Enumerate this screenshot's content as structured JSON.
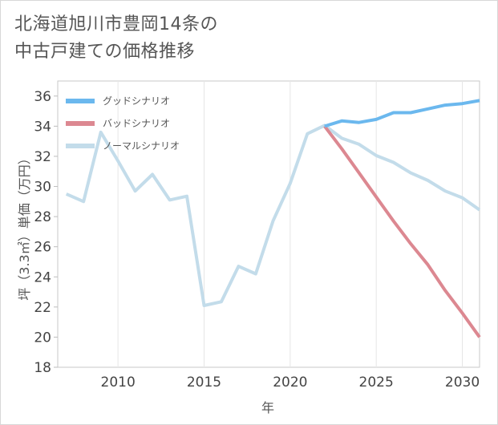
{
  "title": {
    "line1": "北海道旭川市豊岡14条の",
    "line2": "中古戸建ての価格推移"
  },
  "chart_data": {
    "type": "line",
    "title": "北海道旭川市豊岡14条の中古戸建ての価格推移",
    "xlabel": "年",
    "ylabel": "坪（3.3㎡）単価（万円）",
    "xlim": [
      2006.5,
      2031
    ],
    "ylim": [
      18,
      37
    ],
    "xticks": [
      2010,
      2015,
      2020,
      2025,
      2030
    ],
    "yticks": [
      18,
      20,
      22,
      24,
      26,
      28,
      30,
      32,
      34,
      36
    ],
    "grid": "vertical",
    "legend_position": "top-left",
    "series": [
      {
        "name": "グッドシナリオ",
        "color": "#6bb8ee",
        "x": [
          2022,
          2023,
          2024,
          2025,
          2026,
          2027,
          2028,
          2029,
          2030,
          2031
        ],
        "values": [
          34.0,
          34.35,
          34.25,
          34.45,
          34.9,
          34.9,
          35.15,
          35.4,
          35.5,
          35.7
        ]
      },
      {
        "name": "バッドシナリオ",
        "color": "#dc8891",
        "x": [
          2022,
          2023,
          2024,
          2025,
          2026,
          2027,
          2028,
          2029,
          2030,
          2031
        ],
        "values": [
          34.0,
          32.5,
          30.9,
          29.3,
          27.7,
          26.2,
          24.8,
          23.1,
          21.6,
          20.0
        ]
      },
      {
        "name": "ノーマルシナリオ",
        "color": "#c3dcea",
        "x": [
          2007,
          2008,
          2009,
          2010,
          2011,
          2012,
          2013,
          2014,
          2015,
          2016,
          2017,
          2018,
          2019,
          2020,
          2021,
          2022,
          2023,
          2024,
          2025,
          2026,
          2027,
          2028,
          2029,
          2030,
          2031
        ],
        "values": [
          29.5,
          29.0,
          33.6,
          31.7,
          29.7,
          30.8,
          29.1,
          29.35,
          22.1,
          22.35,
          24.7,
          24.2,
          27.7,
          30.2,
          33.5,
          34.05,
          33.2,
          32.8,
          32.05,
          31.6,
          30.9,
          30.4,
          29.7,
          29.25,
          28.45
        ]
      }
    ]
  }
}
